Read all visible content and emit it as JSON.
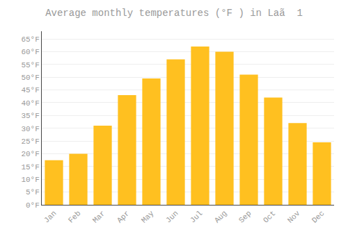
{
  "chart_data": {
    "type": "bar",
    "title": "Average monthly temperatures (°F ) in Laã  1",
    "categories": [
      "Jan",
      "Feb",
      "Mar",
      "Apr",
      "May",
      "Jun",
      "Jul",
      "Aug",
      "Sep",
      "Oct",
      "Nov",
      "Dec"
    ],
    "values": [
      17.5,
      20.0,
      31.0,
      43.0,
      49.5,
      57.0,
      62.0,
      60.0,
      51.0,
      42.0,
      32.0,
      24.5
    ],
    "color": "#FFC020",
    "ylim": [
      0,
      68
    ],
    "yticks": [
      {
        "value": 0,
        "label": "0°F"
      },
      {
        "value": 5,
        "label": "5°F"
      },
      {
        "value": 10,
        "label": "10°F"
      },
      {
        "value": 15,
        "label": "15°F"
      },
      {
        "value": 20,
        "label": "20°F"
      },
      {
        "value": 25,
        "label": "25°F"
      },
      {
        "value": 30,
        "label": "30°F"
      },
      {
        "value": 35,
        "label": "35°F"
      },
      {
        "value": 40,
        "label": "40°F"
      },
      {
        "value": 45,
        "label": "45°F"
      },
      {
        "value": 50,
        "label": "50°F"
      },
      {
        "value": 55,
        "label": "55°F"
      },
      {
        "value": 60,
        "label": "60°F"
      },
      {
        "value": 65,
        "label": "65°F"
      }
    ],
    "grid": true
  }
}
